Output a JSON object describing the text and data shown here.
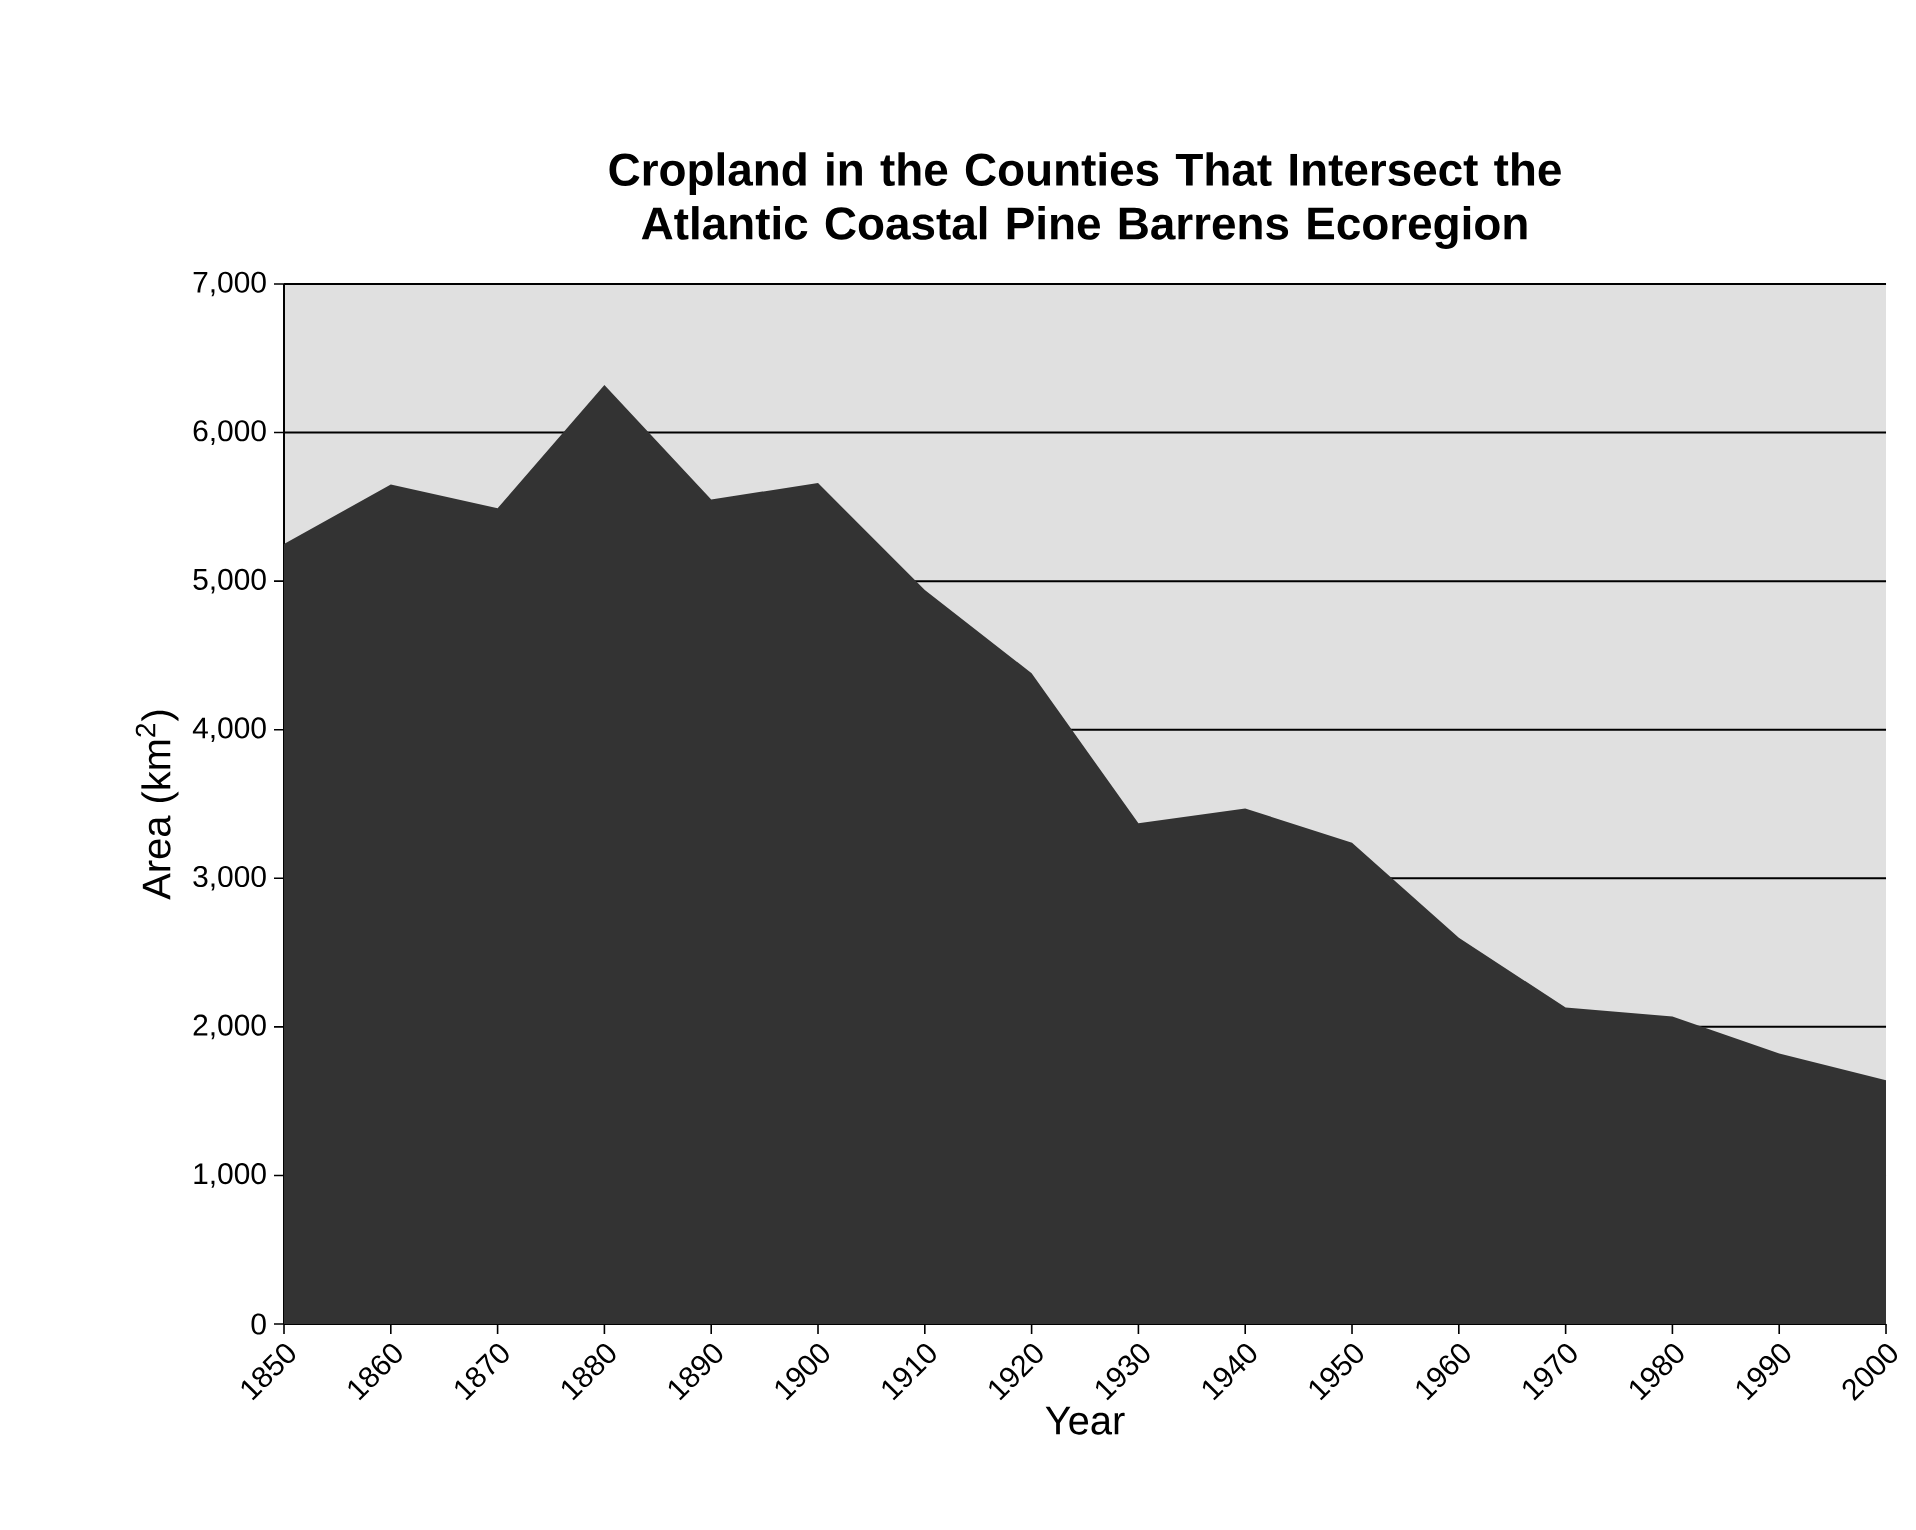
{
  "chart_data": {
    "type": "area",
    "title": "Cropland in the Counties That Intersect the Atlantic Coastal Pine Barrens Ecoregion",
    "xlabel": "Year",
    "ylabel": "Area (km$^{2}$)",
    "x": [
      1850,
      1860,
      1870,
      1880,
      1890,
      1900,
      1910,
      1920,
      1930,
      1940,
      1950,
      1960,
      1970,
      1980,
      1990,
      2000
    ],
    "series": [
      {
        "color": "#333333",
        "values": [
          5250,
          5650,
          5490,
          6320,
          5550,
          5660,
          4940,
          4380,
          3370,
          3470,
          3240,
          2600,
          2130,
          2070,
          1820,
          1640
        ]
      }
    ],
    "xlim": [
      1850,
      2000
    ],
    "xticks": [
      1850,
      1860,
      1870,
      1880,
      1890,
      1900,
      1910,
      1920,
      1930,
      1940,
      1950,
      1960,
      1970,
      1980,
      1990,
      2000
    ],
    "ylim": [
      0,
      7000
    ],
    "yticks": [
      {
        "value": 0,
        "label": "0"
      },
      {
        "value": 1000,
        "label": "1,000"
      },
      {
        "value": 2000,
        "label": "2,000"
      },
      {
        "value": 3000,
        "label": "3,000"
      },
      {
        "value": 4000,
        "label": "4,000"
      },
      {
        "value": 5000,
        "label": "5,000"
      },
      {
        "value": 6000,
        "label": "6,000"
      },
      {
        "value": 7000,
        "label": "7,000"
      }
    ],
    "grid": "y"
  }
}
